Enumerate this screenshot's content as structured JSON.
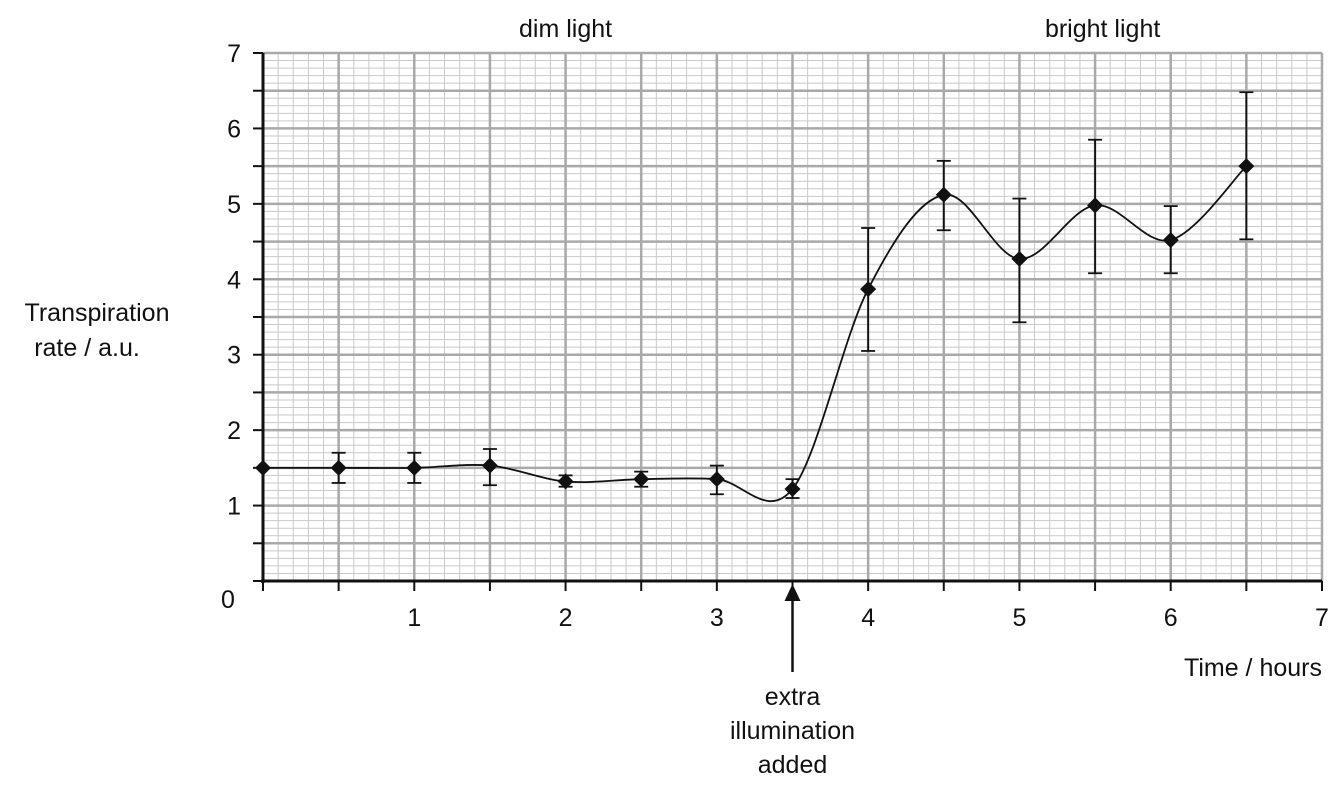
{
  "chart_data": {
    "type": "line",
    "title": "",
    "xlabel": "Time / hours",
    "ylabel_lines": [
      "Transpiration",
      "rate / a.u."
    ],
    "xlim": [
      0,
      7
    ],
    "ylim": [
      0,
      7
    ],
    "x_ticks": [
      "1",
      "2",
      "3",
      "4",
      "5",
      "6",
      "7"
    ],
    "y_ticks": [
      "1",
      "2",
      "3",
      "4",
      "5",
      "6",
      "7"
    ],
    "origin_label": "0",
    "grid": true,
    "regions": [
      {
        "label": "dim light",
        "x_center": 2
      },
      {
        "label": "bright light",
        "x_center": 5.55
      }
    ],
    "annotation": {
      "x": 3.5,
      "lines": [
        "extra",
        "illumination",
        "added"
      ]
    },
    "series": [
      {
        "marker": "diamond",
        "smooth": true,
        "points": [
          {
            "x": 0,
            "y": 1.5,
            "err_low": 1.5,
            "err_high": 1.5
          },
          {
            "x": 0.5,
            "y": 1.5,
            "err_low": 1.3,
            "err_high": 1.7
          },
          {
            "x": 1,
            "y": 1.5,
            "err_low": 1.3,
            "err_high": 1.7
          },
          {
            "x": 1.5,
            "y": 1.53,
            "err_low": 1.27,
            "err_high": 1.75
          },
          {
            "x": 2,
            "y": 1.32,
            "err_low": 1.25,
            "err_high": 1.4
          },
          {
            "x": 2.5,
            "y": 1.35,
            "err_low": 1.25,
            "err_high": 1.45
          },
          {
            "x": 3,
            "y": 1.35,
            "err_low": 1.15,
            "err_high": 1.53
          },
          {
            "x": 3.5,
            "y": 1.22,
            "err_low": 1.1,
            "err_high": 1.35
          },
          {
            "x": 4,
            "y": 3.87,
            "err_low": 3.05,
            "err_high": 4.68
          },
          {
            "x": 4.5,
            "y": 5.12,
            "err_low": 4.65,
            "err_high": 5.57
          },
          {
            "x": 5,
            "y": 4.27,
            "err_low": 3.43,
            "err_high": 5.07
          },
          {
            "x": 5.5,
            "y": 4.98,
            "err_low": 4.08,
            "err_high": 5.85
          },
          {
            "x": 6,
            "y": 4.52,
            "err_low": 4.08,
            "err_high": 4.97
          },
          {
            "x": 6.5,
            "y": 5.5,
            "err_low": 4.53,
            "err_high": 6.48
          }
        ]
      }
    ]
  }
}
